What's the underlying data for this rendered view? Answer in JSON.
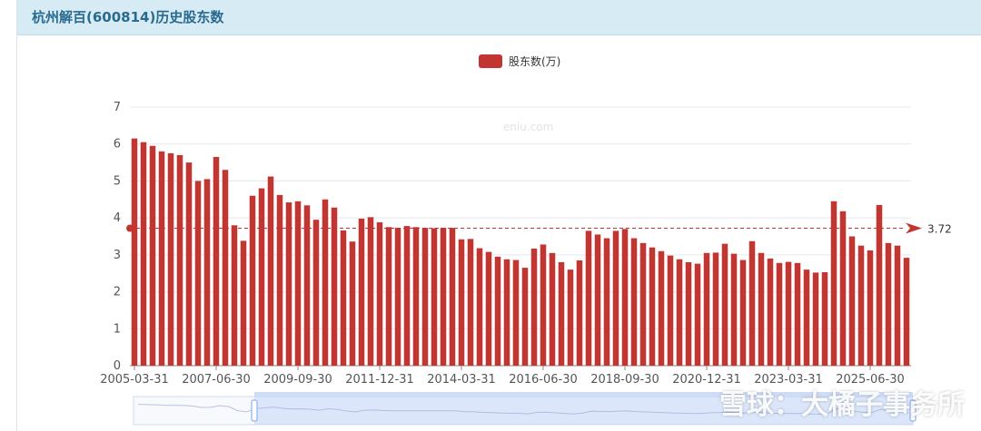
{
  "header": {
    "title": "杭州解百(600814)历史股东数"
  },
  "watermark": "eniu.com",
  "overlay_watermark": "雪球：大橘子事务所",
  "colors": {
    "bar": "#c23531",
    "header_bg": "#d6ebf4",
    "title": "#2a6a8f",
    "grid": "#e3e8f0",
    "markline": "#c23531"
  },
  "chart_data": {
    "type": "bar",
    "legend": [
      "股东数(万)"
    ],
    "legend_position": "top-center",
    "series": [
      {
        "name": "股东数(万)",
        "values": [
          6.15,
          6.05,
          5.95,
          5.8,
          5.75,
          5.7,
          5.5,
          5.0,
          5.05,
          5.65,
          5.3,
          3.8,
          3.38,
          4.6,
          4.8,
          5.12,
          4.62,
          4.42,
          4.45,
          4.34,
          3.95,
          4.5,
          4.28,
          3.66,
          3.36,
          3.98,
          4.02,
          3.88,
          3.75,
          3.73,
          3.78,
          3.75,
          3.73,
          3.72,
          3.73,
          3.73,
          3.42,
          3.43,
          3.18,
          3.08,
          2.95,
          2.88,
          2.86,
          2.65,
          3.17,
          3.28,
          3.05,
          2.8,
          2.6,
          2.85,
          3.65,
          3.55,
          3.45,
          3.65,
          3.7,
          3.45,
          3.32,
          3.2,
          3.1,
          2.98,
          2.88,
          2.8,
          2.76,
          3.05,
          3.06,
          3.3,
          3.03,
          2.86,
          3.37,
          3.05,
          2.9,
          2.78,
          2.81,
          2.78,
          2.6,
          2.52,
          2.53,
          4.45,
          4.18,
          3.5,
          3.25,
          3.12,
          4.35,
          3.32,
          3.25,
          2.92
        ]
      }
    ],
    "x_tick_labels": [
      "2005-03-31",
      "2007-06-30",
      "2009-09-30",
      "2011-12-31",
      "2014-03-31",
      "2016-06-30",
      "2018-09-30",
      "2020-12-31",
      "2023-03-31",
      "2025-06-30"
    ],
    "x_tick_indices": [
      0,
      9,
      18,
      27,
      36,
      45,
      54,
      63,
      72,
      81
    ],
    "y_ticks": [
      0,
      1,
      2,
      3,
      4,
      5,
      6,
      7
    ],
    "ylim": [
      0,
      7
    ],
    "grid": true,
    "mark_line": {
      "type": "average",
      "value": 3.72,
      "label": "3.72"
    },
    "data_zoom": {
      "start_fraction": 0.155,
      "end_fraction": 1.0
    }
  }
}
